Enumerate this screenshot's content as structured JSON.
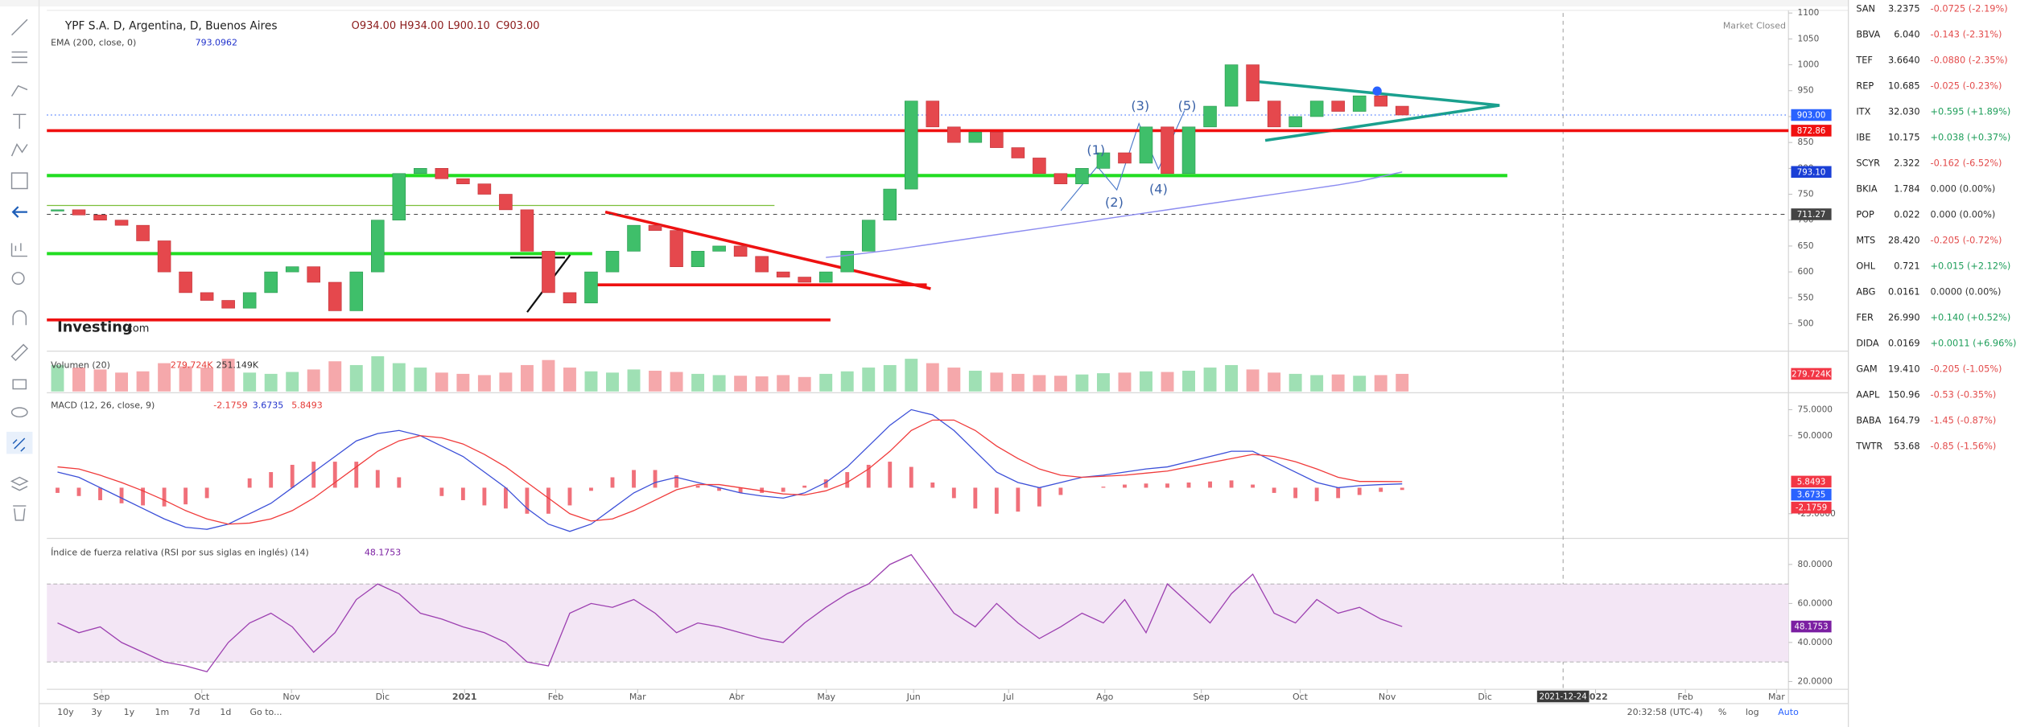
{
  "chart_data": [
    {
      "type": "candlestick",
      "title": "YPF S.A. D, Argentina, D, Buenos Aires",
      "ohlc_labels": [
        "O934.00",
        "H934.00",
        "L900.10",
        "C903.00"
      ],
      "status": "Market Closed",
      "watermark": [
        "Investing",
        ".com"
      ],
      "xlim": [
        -0.5,
        81.1
      ],
      "xticks": [
        {
          "value": 2.06,
          "label": "Sep"
        },
        {
          "value": 6.76,
          "label": "Oct"
        },
        {
          "value": 10.96,
          "label": "Nov"
        },
        {
          "value": 15.23,
          "label": "Dic"
        },
        {
          "value": 19.07,
          "label": "2021"
        },
        {
          "value": 23.34,
          "label": "Feb"
        },
        {
          "value": 27.18,
          "label": "Mar"
        },
        {
          "value": 31.82,
          "label": "Abr"
        },
        {
          "value": 36.02,
          "label": "May"
        },
        {
          "value": 40.11,
          "label": "Jun"
        },
        {
          "value": 44.56,
          "label": "Jul"
        },
        {
          "value": 49.07,
          "label": "Ago"
        },
        {
          "value": 53.59,
          "label": "Sep"
        },
        {
          "value": 58.22,
          "label": "Oct"
        },
        {
          "value": 62.3,
          "label": "Nov"
        },
        {
          "value": 66.88,
          "label": "Dic"
        },
        {
          "value": 72.06,
          "label": "2022"
        },
        {
          "value": 76.27,
          "label": "Feb"
        },
        {
          "value": 80.54,
          "label": "Mar"
        }
      ],
      "crosshair": {
        "value": 70.54,
        "label": "2021-12-24"
      },
      "ylim": [
        447,
        1100
      ],
      "yticks": [
        500,
        550,
        600,
        650,
        700,
        750,
        800,
        850,
        900,
        950,
        1000,
        1050,
        1100
      ],
      "up_color": "#3fbf6a",
      "down_color": "#e5484d",
      "values": [
        720,
        710,
        700,
        690,
        660,
        600,
        560,
        545,
        530,
        560,
        600,
        610,
        580,
        525,
        600,
        700,
        790,
        800,
        780,
        770,
        750,
        720,
        640,
        560,
        540,
        600,
        640,
        690,
        680,
        610,
        640,
        650,
        630,
        600,
        590,
        580,
        600,
        640,
        700,
        760,
        930,
        880,
        850,
        870,
        840,
        820,
        790,
        770,
        800,
        830,
        810,
        880,
        790,
        880,
        920,
        1000,
        930,
        880,
        900,
        930,
        910,
        940,
        920,
        903
      ],
      "series": [
        {
          "name": "EMA (200, close, 0)",
          "value_label": "793.0962",
          "color": "#8c8cf0",
          "values": [
            null,
            null,
            null,
            null,
            null,
            null,
            null,
            null,
            null,
            null,
            null,
            null,
            null,
            null,
            null,
            null,
            null,
            null,
            null,
            null,
            null,
            null,
            null,
            null,
            null,
            null,
            null,
            null,
            null,
            null,
            null,
            null,
            null,
            null,
            null,
            null,
            628,
            632,
            637,
            642,
            648,
            654,
            660,
            666,
            672,
            678,
            684,
            690,
            696,
            702,
            708,
            714,
            720,
            726,
            732,
            738,
            744,
            750,
            756,
            762,
            768,
            775,
            784,
            793.0962
          ]
        }
      ],
      "badges": [
        {
          "value": 903,
          "label": "903.00",
          "color": "#2962ff",
          "line": "dotted"
        },
        {
          "value": 872.86,
          "label": "872.86",
          "color": "#f01010",
          "line": "solid"
        },
        {
          "value": 793.1,
          "label": "793.10",
          "color": "#1a3fd6"
        },
        {
          "value": 711.27,
          "label": "711.27",
          "color": "#444",
          "line": "dashed"
        }
      ],
      "annotations": [
        "(1)",
        "(2)",
        "(3)",
        "(4)",
        "(5)"
      ]
    },
    {
      "type": "bar",
      "name": "Volumen (20)",
      "header_values": [
        "279.724K",
        "251.149K"
      ],
      "ylim": [
        0,
        600000
      ],
      "up_color": "#9fe0b4",
      "down_color": "#f5a8ab",
      "values": [
        420000,
        380000,
        350000,
        300000,
        320000,
        450000,
        400000,
        380000,
        520000,
        300000,
        280000,
        310000,
        350000,
        480000,
        420000,
        560000,
        450000,
        380000,
        300000,
        280000,
        260000,
        300000,
        420000,
        500000,
        380000,
        320000,
        300000,
        350000,
        330000,
        310000,
        280000,
        260000,
        250000,
        240000,
        260000,
        230000,
        280000,
        320000,
        380000,
        420000,
        520000,
        450000,
        380000,
        330000,
        300000,
        280000,
        260000,
        250000,
        270000,
        290000,
        300000,
        320000,
        310000,
        330000,
        380000,
        420000,
        350000,
        300000,
        280000,
        260000,
        270000,
        250000,
        260000,
        279724
      ],
      "badges": [
        {
          "value": 279724,
          "label": "279.724K",
          "color": "#f23645"
        }
      ]
    },
    {
      "type": "line",
      "name": "MACD (12, 26, close, 9)",
      "header_values": [
        "-2.1759",
        "3.6735",
        "5.8493"
      ],
      "ylim": [
        -47.5,
        90
      ],
      "yticks": [
        {
          "value": 75,
          "label": "75.0000"
        },
        {
          "value": 50,
          "label": "50.0000"
        },
        {
          "value": -25,
          "label": "-25.0000"
        }
      ],
      "series": [
        {
          "name": "Histogram",
          "type": "bar",
          "color": "#f0707a",
          "values": [
            -5,
            -8,
            -12,
            -15,
            -17,
            -18,
            -16,
            -10,
            0,
            9,
            15,
            22,
            25,
            25,
            25,
            17,
            10,
            0,
            -8,
            -12,
            -17,
            -20,
            -25,
            -25,
            -17,
            -3,
            10,
            17,
            17,
            12,
            2,
            -3,
            -5,
            -5,
            -4,
            2,
            8,
            15,
            22,
            25,
            20,
            5,
            -10,
            -20,
            -25,
            -23,
            -18,
            -7,
            0,
            1,
            3,
            4,
            4,
            5,
            6,
            7,
            3,
            -5,
            -10,
            -13,
            -10,
            -7,
            -4,
            -2.1759
          ]
        },
        {
          "name": "MACD",
          "color": "#3b4fd8",
          "values": [
            15,
            10,
            0,
            -10,
            -20,
            -30,
            -38,
            -40,
            -35,
            -25,
            -15,
            0,
            15,
            30,
            45,
            52,
            55,
            50,
            40,
            30,
            15,
            0,
            -20,
            -35,
            -42,
            -35,
            -20,
            -5,
            5,
            10,
            5,
            0,
            -5,
            -8,
            -10,
            -5,
            5,
            20,
            40,
            60,
            75,
            70,
            55,
            35,
            15,
            5,
            0,
            5,
            10,
            12,
            15,
            18,
            20,
            25,
            30,
            35,
            35,
            25,
            15,
            5,
            0,
            2,
            3,
            3.6735
          ]
        },
        {
          "name": "Signal",
          "color": "#f03a3a",
          "values": [
            20,
            18,
            12,
            5,
            -3,
            -12,
            -22,
            -30,
            -35,
            -34,
            -30,
            -22,
            -10,
            5,
            20,
            35,
            45,
            50,
            48,
            42,
            32,
            20,
            5,
            -10,
            -25,
            -32,
            -30,
            -22,
            -12,
            -2,
            3,
            3,
            0,
            -3,
            -6,
            -7,
            -3,
            5,
            18,
            35,
            55,
            65,
            65,
            55,
            40,
            28,
            18,
            12,
            10,
            11,
            12,
            14,
            16,
            20,
            24,
            28,
            32,
            30,
            25,
            18,
            10,
            6,
            6,
            5.8493
          ]
        }
      ],
      "badges": [
        {
          "value": 5.8493,
          "label": "5.8493",
          "color": "#f23645"
        },
        {
          "value": 3.6735,
          "label": "3.6735",
          "color": "#2962ff"
        },
        {
          "value": -2.1759,
          "label": "-2.1759",
          "color": "#f23645"
        }
      ]
    },
    {
      "type": "line",
      "name": "Índice de fuerza relativa (RSI por sus siglas en inglés) (14)",
      "header_values": [
        "48.1753"
      ],
      "ylim": [
        16,
        92.67
      ],
      "yticks": [
        {
          "value": 80,
          "label": "80.0000"
        },
        {
          "value": 60,
          "label": "60.0000"
        },
        {
          "value": 40,
          "label": "40.0000"
        },
        {
          "value": 20,
          "label": "20.0000"
        }
      ],
      "band": [
        30,
        70
      ],
      "band_color": "#f3e6f5",
      "series": [
        {
          "name": "RSI",
          "color": "#9c3fb0",
          "values": [
            50,
            45,
            48,
            40,
            35,
            30,
            28,
            25,
            40,
            50,
            55,
            48,
            35,
            45,
            62,
            70,
            65,
            55,
            52,
            48,
            45,
            40,
            30,
            28,
            55,
            60,
            58,
            62,
            55,
            45,
            50,
            48,
            45,
            42,
            40,
            50,
            58,
            65,
            70,
            80,
            85,
            70,
            55,
            48,
            60,
            50,
            42,
            48,
            55,
            50,
            62,
            45,
            70,
            60,
            50,
            65,
            75,
            55,
            50,
            62,
            55,
            58,
            52,
            48.1753
          ]
        }
      ],
      "badges": [
        {
          "value": 48.1753,
          "label": "48.1753",
          "color": "#7b1fa2"
        }
      ]
    }
  ],
  "watchlist": [
    {
      "symbol": "SAN",
      "price": "3.2375",
      "change": "-0.0725 (-2.19%)"
    },
    {
      "symbol": "BBVA",
      "price": "6.040",
      "change": "-0.143 (-2.31%)"
    },
    {
      "symbol": "TEF",
      "price": "3.6640",
      "change": "-0.0880 (-2.35%)"
    },
    {
      "symbol": "REP",
      "price": "10.685",
      "change": "-0.025 (-0.23%)"
    },
    {
      "symbol": "ITX",
      "price": "32.030",
      "change": "+0.595 (+1.89%)"
    },
    {
      "symbol": "IBE",
      "price": "10.175",
      "change": "+0.038 (+0.37%)"
    },
    {
      "symbol": "SCYR",
      "price": "2.322",
      "change": "-0.162 (-6.52%)"
    },
    {
      "symbol": "BKIA",
      "price": "1.784",
      "change": "0.000 (0.00%)"
    },
    {
      "symbol": "POP",
      "price": "0.022",
      "change": "0.000 (0.00%)"
    },
    {
      "symbol": "MTS",
      "price": "28.420",
      "change": "-0.205 (-0.72%)"
    },
    {
      "symbol": "OHL",
      "price": "0.721",
      "change": "+0.015 (+2.12%)"
    },
    {
      "symbol": "ABG",
      "price": "0.0161",
      "change": "0.0000 (0.00%)"
    },
    {
      "symbol": "FER",
      "price": "26.990",
      "change": "+0.140 (+0.52%)"
    },
    {
      "symbol": "DIDA",
      "price": "0.0169",
      "change": "+0.0011 (+6.96%)"
    },
    {
      "symbol": "GAM",
      "price": "19.410",
      "change": "-0.205 (-1.05%)"
    },
    {
      "symbol": "AAPL",
      "price": "150.96",
      "change": "-0.53 (-0.35%)"
    },
    {
      "symbol": "BABA",
      "price": "164.79",
      "change": "-1.45 (-0.87%)"
    },
    {
      "symbol": "TWTR",
      "price": "53.68",
      "change": "-0.85 (-1.56%)"
    }
  ],
  "bottom_bar": {
    "ranges": [
      "10y",
      "3y",
      "1y",
      "1m",
      "7d",
      "1d"
    ],
    "goto": "Go to...",
    "clock": "20:32:58 (UTC-4)",
    "scale_buttons": [
      "%",
      "log",
      "Auto"
    ]
  }
}
